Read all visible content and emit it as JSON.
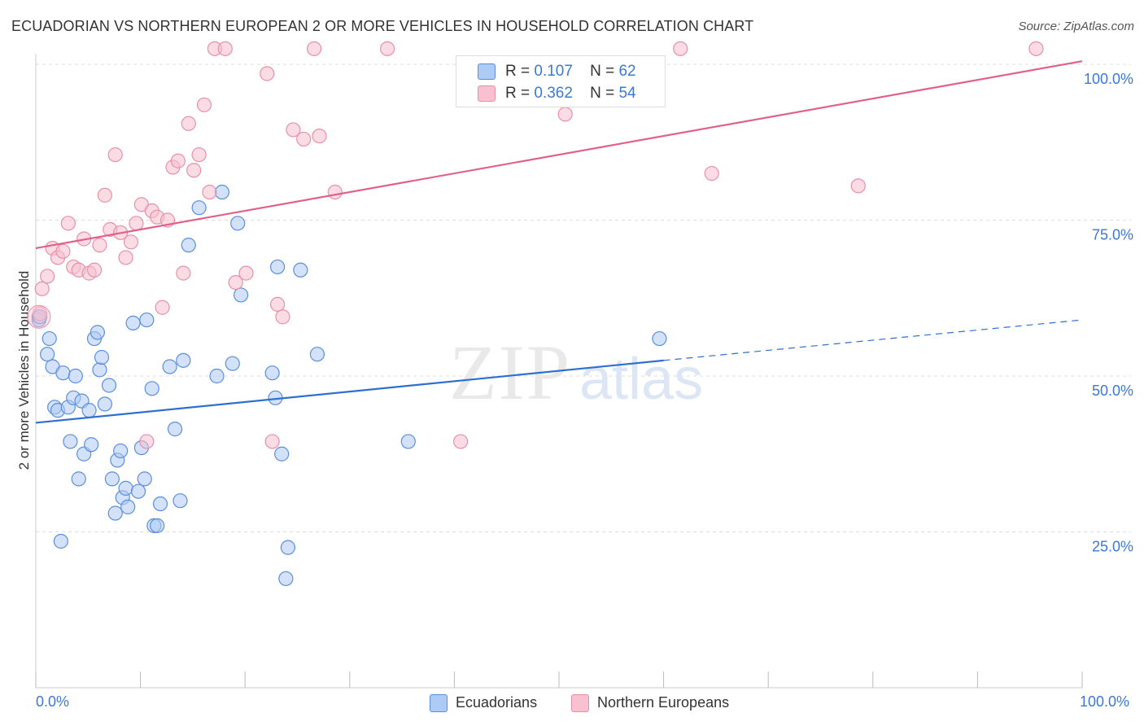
{
  "title": "ECUADORIAN VS NORTHERN EUROPEAN 2 OR MORE VEHICLES IN HOUSEHOLD CORRELATION CHART",
  "source": "Source: ZipAtlas.com",
  "watermark": {
    "zip": "ZIP",
    "atlas": "atlas"
  },
  "legend_top": {
    "r_label": "R =",
    "n_label": "N =",
    "rows": [
      {
        "r": "0.107",
        "n": "62"
      },
      {
        "r": "0.362",
        "n": "54"
      }
    ]
  },
  "legend_bottom": [
    "Ecuadorians",
    "Northern Europeans"
  ],
  "x_tick_labels": {
    "left": "0.0%",
    "right": "100.0%"
  },
  "chart_data": {
    "type": "scatter",
    "title": "ECUADORIAN VS NORTHERN EUROPEAN 2 OR MORE VEHICLES IN HOUSEHOLD CORRELATION CHART",
    "xlabel": "",
    "ylabel": "2 or more Vehicles in Household",
    "xlim": [
      0,
      100
    ],
    "ylim": [
      0,
      100
    ],
    "y_ticks": [
      {
        "value": 25,
        "label": "25.0%"
      },
      {
        "value": 50,
        "label": "50.0%"
      },
      {
        "value": 75,
        "label": "75.0%"
      },
      {
        "value": 100,
        "label": "100.0%"
      }
    ],
    "grid": true,
    "colors": {
      "ecuadorians_fill": "#aecbf5",
      "ecuadorians_stroke": "#5b8fdb",
      "ecuadorians_line": "#2f6fcf",
      "northern_fill": "#f8c0d0",
      "northern_stroke": "#e890aa",
      "northern_line": "#e0628c",
      "tick_text": "#3b78d8",
      "grid": "#dddddd"
    },
    "series": [
      {
        "name": "Ecuadorians",
        "r": 0.107,
        "n": 62,
        "trend": {
          "x0": 0,
          "y0": 42.5,
          "x1": 60,
          "y1": 52.5,
          "dash_x1": 100,
          "dash_y1": 59.0
        },
        "points": [
          [
            0.3,
            59.5
          ],
          [
            0.3,
            59.0
          ],
          [
            1.1,
            53.5
          ],
          [
            1.3,
            56.0
          ],
          [
            1.6,
            51.5
          ],
          [
            1.8,
            45.0
          ],
          [
            2.1,
            44.5
          ],
          [
            2.4,
            23.5
          ],
          [
            2.6,
            50.5
          ],
          [
            3.1,
            45.0
          ],
          [
            3.3,
            39.5
          ],
          [
            3.6,
            46.5
          ],
          [
            3.8,
            50.0
          ],
          [
            4.1,
            33.5
          ],
          [
            4.4,
            46.0
          ],
          [
            4.6,
            37.5
          ],
          [
            5.1,
            44.5
          ],
          [
            5.3,
            39.0
          ],
          [
            5.6,
            56.0
          ],
          [
            5.9,
            57.0
          ],
          [
            6.1,
            51.0
          ],
          [
            6.3,
            53.0
          ],
          [
            6.6,
            45.5
          ],
          [
            7.0,
            48.5
          ],
          [
            7.3,
            33.5
          ],
          [
            7.6,
            28.0
          ],
          [
            7.8,
            36.5
          ],
          [
            8.1,
            38.0
          ],
          [
            8.3,
            30.5
          ],
          [
            8.6,
            32.0
          ],
          [
            8.8,
            29.0
          ],
          [
            9.3,
            58.5
          ],
          [
            9.8,
            31.5
          ],
          [
            10.1,
            38.5
          ],
          [
            10.4,
            33.5
          ],
          [
            10.6,
            59.0
          ],
          [
            11.1,
            48.0
          ],
          [
            11.3,
            26.0
          ],
          [
            11.6,
            26.0
          ],
          [
            11.9,
            29.5
          ],
          [
            12.8,
            51.5
          ],
          [
            13.3,
            41.5
          ],
          [
            13.8,
            30.0
          ],
          [
            14.1,
            52.5
          ],
          [
            14.6,
            71.0
          ],
          [
            15.6,
            77.0
          ],
          [
            17.3,
            50.0
          ],
          [
            17.8,
            79.5
          ],
          [
            18.8,
            52.0
          ],
          [
            19.3,
            74.5
          ],
          [
            19.6,
            63.0
          ],
          [
            22.6,
            50.5
          ],
          [
            22.9,
            46.5
          ],
          [
            23.1,
            67.5
          ],
          [
            23.5,
            37.5
          ],
          [
            23.9,
            17.5
          ],
          [
            24.1,
            22.5
          ],
          [
            25.3,
            67.0
          ],
          [
            26.9,
            53.5
          ],
          [
            35.6,
            39.5
          ],
          [
            59.6,
            56.0
          ],
          [
            0.4,
            59.5
          ]
        ]
      },
      {
        "name": "Northern Europeans",
        "r": 0.362,
        "n": 54,
        "trend": {
          "x0": 0,
          "y0": 70.5,
          "x1": 100,
          "y1": 100.5
        },
        "points": [
          [
            0.4,
            60.0
          ],
          [
            0.6,
            64.0
          ],
          [
            1.1,
            66.0
          ],
          [
            1.6,
            70.5
          ],
          [
            2.1,
            69.0
          ],
          [
            2.6,
            70.0
          ],
          [
            3.1,
            74.5
          ],
          [
            3.6,
            67.5
          ],
          [
            4.1,
            67.0
          ],
          [
            4.6,
            72.0
          ],
          [
            5.1,
            66.5
          ],
          [
            5.6,
            67.0
          ],
          [
            6.1,
            71.0
          ],
          [
            6.6,
            79.0
          ],
          [
            7.1,
            73.5
          ],
          [
            7.6,
            85.5
          ],
          [
            8.1,
            73.0
          ],
          [
            8.6,
            69.0
          ],
          [
            9.1,
            71.5
          ],
          [
            9.6,
            74.5
          ],
          [
            10.1,
            77.5
          ],
          [
            10.6,
            39.5
          ],
          [
            11.1,
            76.5
          ],
          [
            11.6,
            75.5
          ],
          [
            12.1,
            61.0
          ],
          [
            12.6,
            75.0
          ],
          [
            13.1,
            83.5
          ],
          [
            13.6,
            84.5
          ],
          [
            14.1,
            66.5
          ],
          [
            14.6,
            90.5
          ],
          [
            15.1,
            83.0
          ],
          [
            15.6,
            85.5
          ],
          [
            16.1,
            93.5
          ],
          [
            16.6,
            79.5
          ],
          [
            17.1,
            102.5
          ],
          [
            18.1,
            102.5
          ],
          [
            19.1,
            65.0
          ],
          [
            20.1,
            66.5
          ],
          [
            22.1,
            98.5
          ],
          [
            22.6,
            39.5
          ],
          [
            23.1,
            61.5
          ],
          [
            23.6,
            59.5
          ],
          [
            24.6,
            89.5
          ],
          [
            25.6,
            88.0
          ],
          [
            26.6,
            102.5
          ],
          [
            27.1,
            88.5
          ],
          [
            28.6,
            79.5
          ],
          [
            33.6,
            102.5
          ],
          [
            40.6,
            39.5
          ],
          [
            50.6,
            92.0
          ],
          [
            61.6,
            102.5
          ],
          [
            64.6,
            82.5
          ],
          [
            78.6,
            80.5
          ],
          [
            95.6,
            102.5
          ]
        ]
      }
    ]
  }
}
